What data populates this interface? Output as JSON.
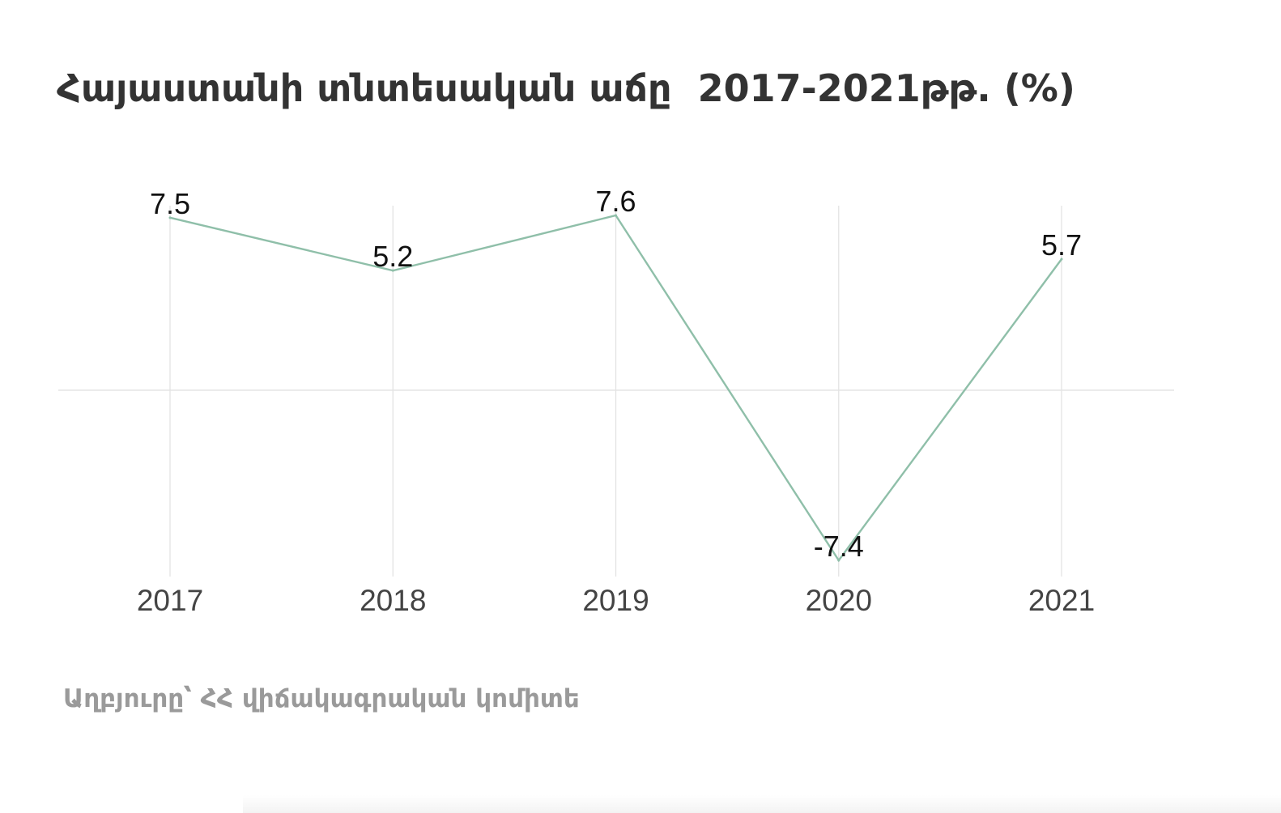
{
  "chart_data": {
    "type": "line",
    "title": "Հայաստանի տնտեսական աճը  2017-2021թթ. (%)",
    "categories": [
      "2017",
      "2018",
      "2019",
      "2020",
      "2021"
    ],
    "series": [
      {
        "values": [
          7.5,
          5.2,
          7.6,
          -7.4,
          5.7
        ],
        "labels": [
          "7.5",
          "5.2",
          "7.6",
          "-7.4",
          "5.7"
        ]
      }
    ],
    "xlabel": "",
    "ylabel": "",
    "ylim": [
      -7.4,
      7.6
    ],
    "zero_line": true,
    "vertical_grid": true,
    "line_color": "#8fbfa9",
    "grid_color": "#e3e3e3",
    "source": "Աղբյուրը՝ ՀՀ վիճակագրական կոմիտե"
  }
}
